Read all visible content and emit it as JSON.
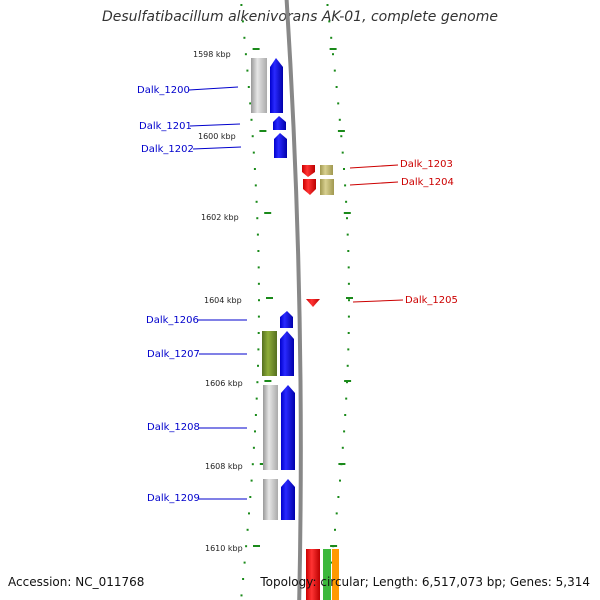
{
  "title": "Desulfatibacillum alkenivorans AK-01, complete genome",
  "accession": "Accession: NC_011768",
  "summary": "Topology: circular; Length: 6,517,073 bp; Genes: 5,314",
  "ticks": [
    "1598 kbp",
    "1600 kbp",
    "1602 kbp",
    "1604 kbp",
    "1606 kbp",
    "1608 kbp",
    "1610 kbp"
  ],
  "colors": {
    "forward": "#0000ff",
    "reverse": "#ee0000",
    "tick": "#1a8a1a",
    "backbone": "#888888",
    "cds_gray": "#bbbbbb",
    "cds_green": "#6b8e23",
    "cds_tan": "#b8b070"
  },
  "genes": [
    {
      "id": "Dalk_1200",
      "strand": "forward"
    },
    {
      "id": "Dalk_1201",
      "strand": "forward"
    },
    {
      "id": "Dalk_1202",
      "strand": "forward"
    },
    {
      "id": "Dalk_1203",
      "strand": "reverse"
    },
    {
      "id": "Dalk_1204",
      "strand": "reverse"
    },
    {
      "id": "Dalk_1205",
      "strand": "reverse"
    },
    {
      "id": "Dalk_1206",
      "strand": "forward"
    },
    {
      "id": "Dalk_1207",
      "strand": "forward"
    },
    {
      "id": "Dalk_1208",
      "strand": "forward"
    },
    {
      "id": "Dalk_1209",
      "strand": "forward"
    }
  ]
}
